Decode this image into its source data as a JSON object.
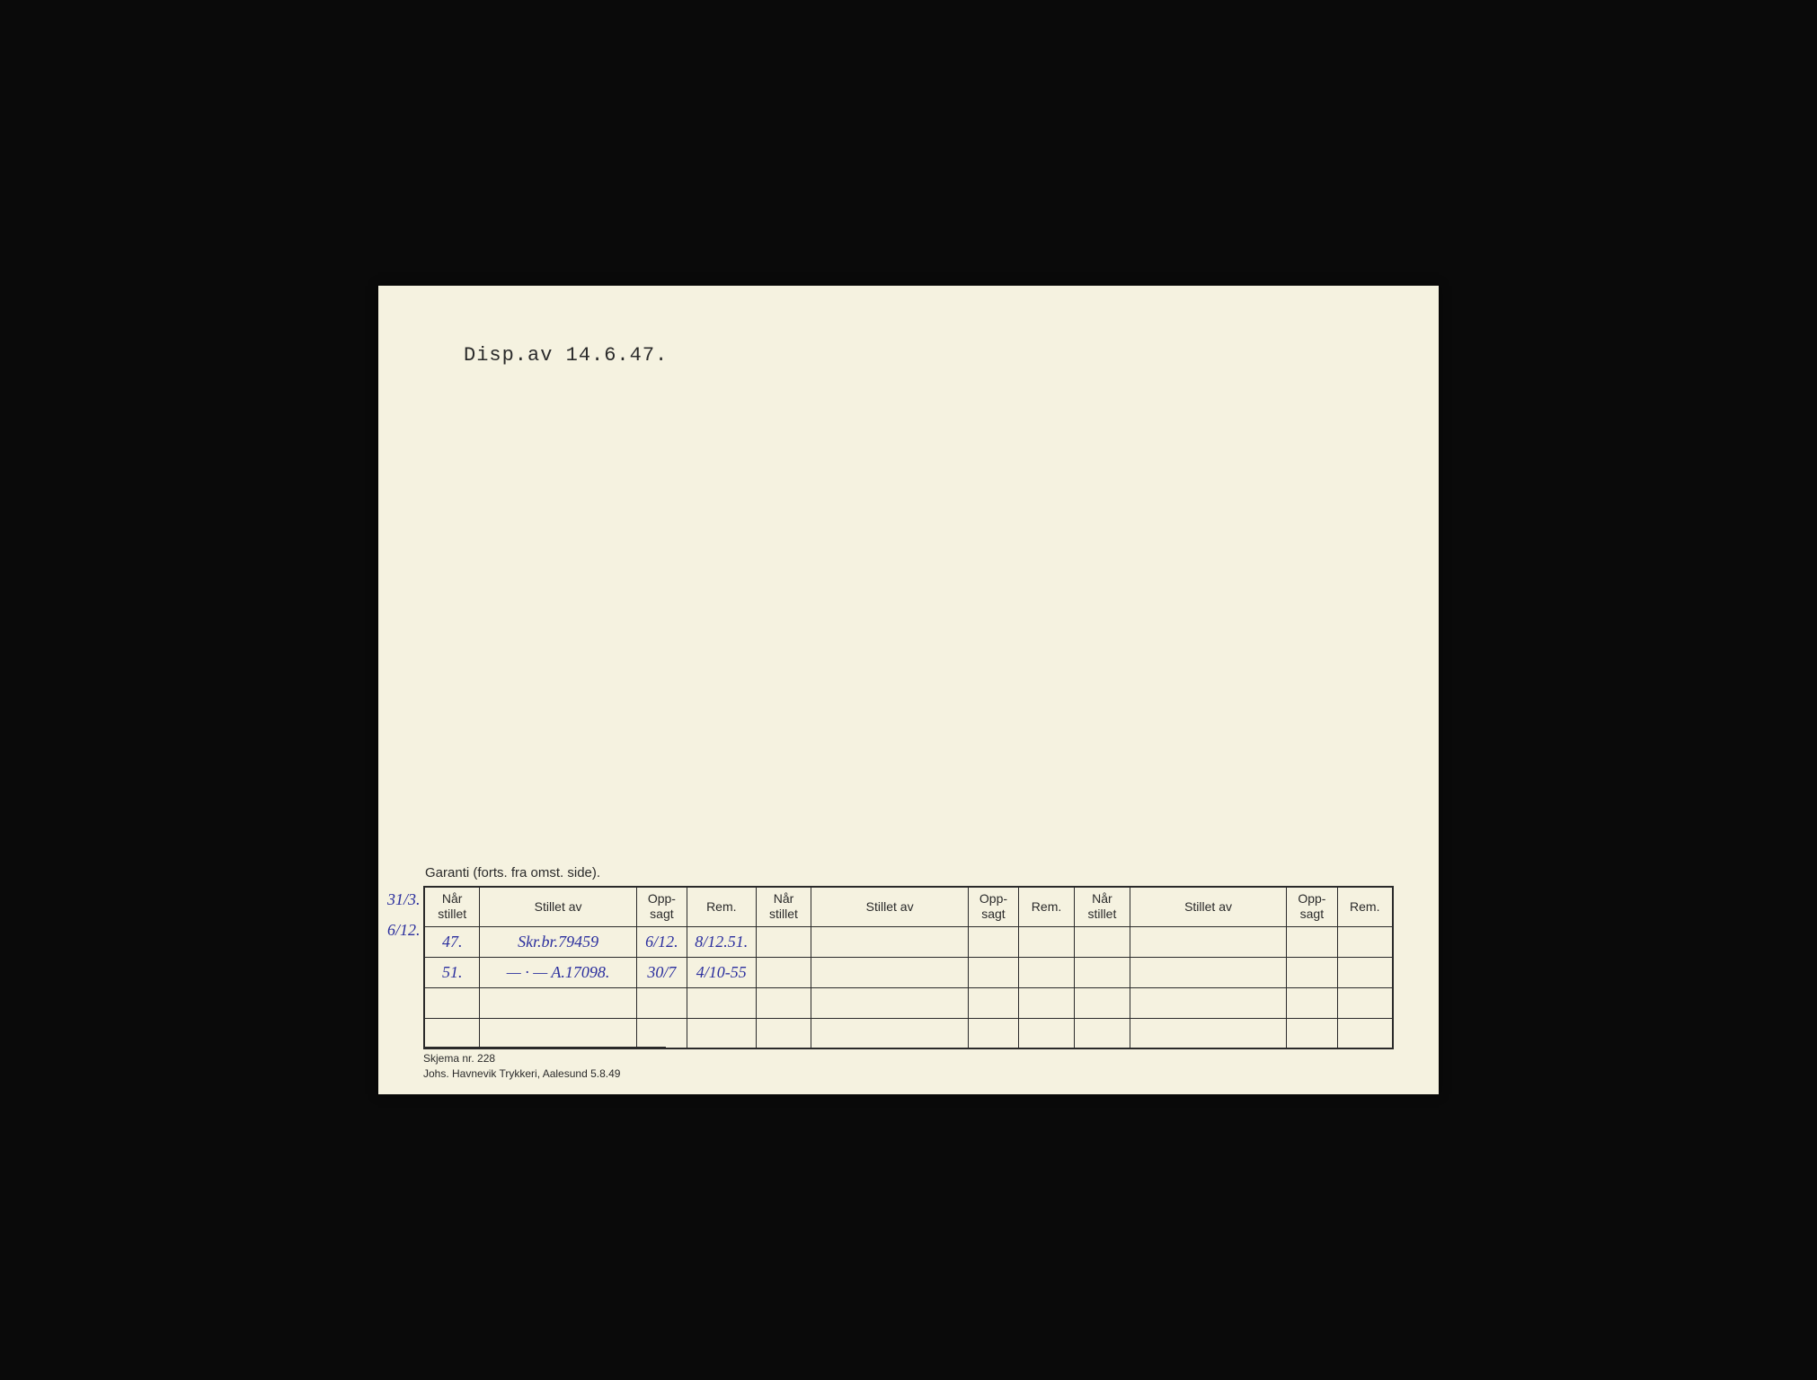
{
  "header": {
    "title": "Disp.av 14.6.47."
  },
  "table": {
    "caption": "Garanti (forts. fra omst. side).",
    "columns": [
      "Når stillet",
      "Stillet av",
      "Opp-sagt",
      "Rem.",
      "Når stillet",
      "Stillet av",
      "Opp-sagt",
      "Rem.",
      "Når stillet",
      "Stillet av",
      "Opp-sagt",
      "Rem."
    ],
    "rows": [
      {
        "margin": "31/3.",
        "cells": [
          "47.",
          "Skr.br.79459",
          "6/12.",
          "8/12.51.",
          "",
          "",
          "",
          "",
          "",
          "",
          "",
          ""
        ]
      },
      {
        "margin": "6/12.",
        "cells": [
          "51.",
          "— · — A.17098.",
          "30/7",
          "4/10-55",
          "",
          "",
          "",
          "",
          "",
          "",
          "",
          ""
        ]
      },
      {
        "margin": "",
        "cells": [
          "",
          "",
          "",
          "",
          "",
          "",
          "",
          "",
          "",
          "",
          "",
          ""
        ]
      },
      {
        "margin": "",
        "cells": [
          "",
          "",
          "",
          "",
          "",
          "",
          "",
          "",
          "",
          "",
          "",
          ""
        ]
      }
    ]
  },
  "footer": {
    "line1": "Skjema nr. 228",
    "line2": "Johs. Havnevik Trykkeri, Aalesund 5.8.49"
  },
  "colors": {
    "page_bg": "#f5f2e0",
    "ink": "#2a2a2a",
    "handwriting": "#2b2f9e",
    "outer_bg": "#0a0a0a"
  }
}
